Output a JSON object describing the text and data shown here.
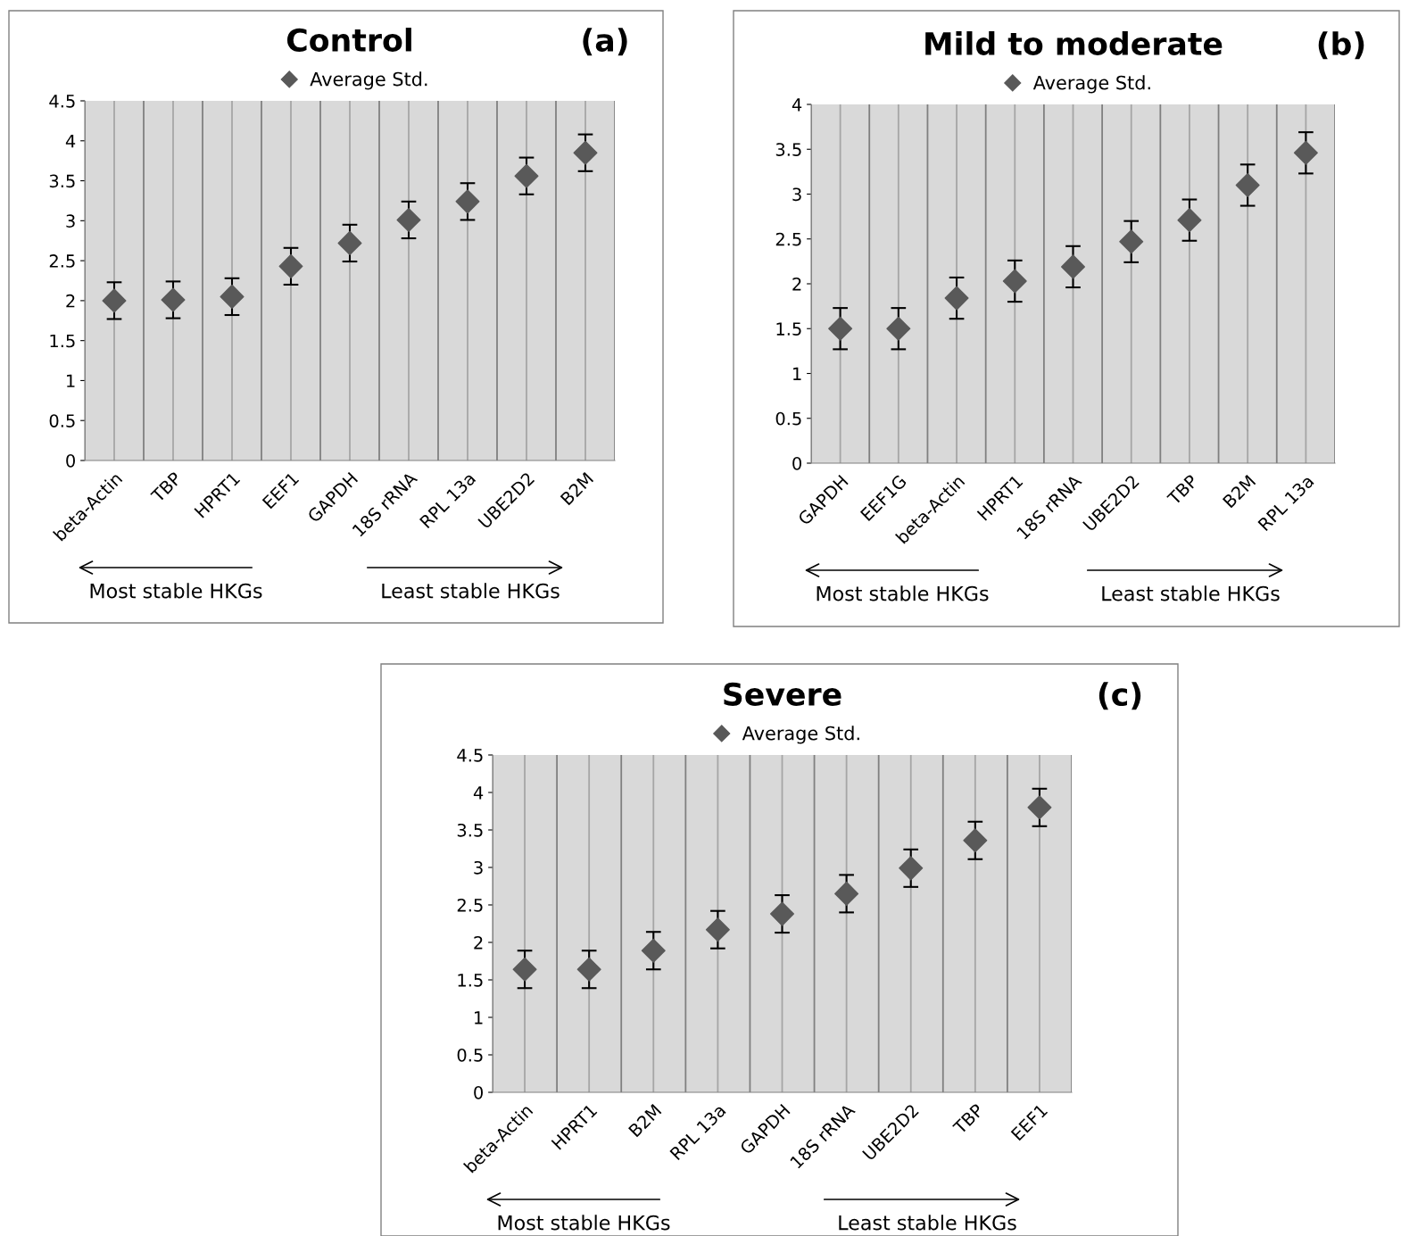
{
  "chart_data": [
    {
      "type": "scatter",
      "title": "Control",
      "annotations": [
        "(a)",
        "Most stable HKGs",
        "Least stable HKGs"
      ],
      "categories": [
        "beta-Actin",
        "TBP",
        "HPRT1",
        "EEF1",
        "GAPDH",
        "18S rRNA",
        "RPL 13a",
        "UBE2D2",
        "B2M"
      ],
      "series": [
        {
          "name": "Average Std.",
          "color": "#595959",
          "values": [
            2.0,
            2.01,
            2.05,
            2.43,
            2.72,
            3.01,
            3.24,
            3.56,
            3.85
          ],
          "errors": [
            0.23,
            0.23,
            0.23,
            0.23,
            0.23,
            0.23,
            0.23,
            0.23,
            0.23
          ]
        }
      ],
      "ylim": [
        0,
        4.5
      ],
      "yticks": [
        0,
        0.5,
        1,
        1.5,
        2,
        2.5,
        3,
        3.5,
        4,
        4.5
      ],
      "grid": "x",
      "legend": "top",
      "marker": "diamond"
    },
    {
      "type": "scatter",
      "title": "Mild to moderate",
      "annotations": [
        "(b)",
        "Most stable HKGs",
        "Least stable HKGs"
      ],
      "categories": [
        "GAPDH",
        "EEF1G",
        "beta-Actin",
        "HPRT1",
        "18S rRNA",
        "UBE2D2",
        "TBP",
        "B2M",
        "RPL 13a"
      ],
      "series": [
        {
          "name": "Average Std.",
          "color": "#595959",
          "values": [
            1.5,
            1.5,
            1.84,
            2.03,
            2.19,
            2.47,
            2.71,
            3.1,
            3.46
          ],
          "errors": [
            0.23,
            0.23,
            0.23,
            0.23,
            0.23,
            0.23,
            0.23,
            0.23,
            0.23
          ]
        }
      ],
      "ylim": [
        0,
        4
      ],
      "yticks": [
        0,
        0.5,
        1,
        1.5,
        2,
        2.5,
        3,
        3.5,
        4
      ],
      "grid": "x",
      "legend": "top",
      "marker": "diamond"
    },
    {
      "type": "scatter",
      "title": "Severe",
      "annotations": [
        "(c)",
        "Most stable HKGs",
        "Least stable HKGs"
      ],
      "categories": [
        "beta-Actin",
        "HPRT1",
        "B2M",
        "RPL 13a",
        "GAPDH",
        "18S rRNA",
        "UBE2D2",
        "TBP",
        "EEF1"
      ],
      "series": [
        {
          "name": "Average Std.",
          "color": "#595959",
          "values": [
            1.64,
            1.64,
            1.89,
            2.17,
            2.38,
            2.65,
            2.99,
            3.36,
            3.8
          ],
          "errors": [
            0.25,
            0.25,
            0.25,
            0.25,
            0.25,
            0.25,
            0.25,
            0.25,
            0.25
          ]
        }
      ],
      "ylim": [
        0,
        4.5
      ],
      "yticks": [
        0,
        0.5,
        1,
        1.5,
        2,
        2.5,
        3,
        3.5,
        4,
        4.5
      ],
      "grid": "x",
      "legend": "top",
      "marker": "diamond"
    }
  ]
}
